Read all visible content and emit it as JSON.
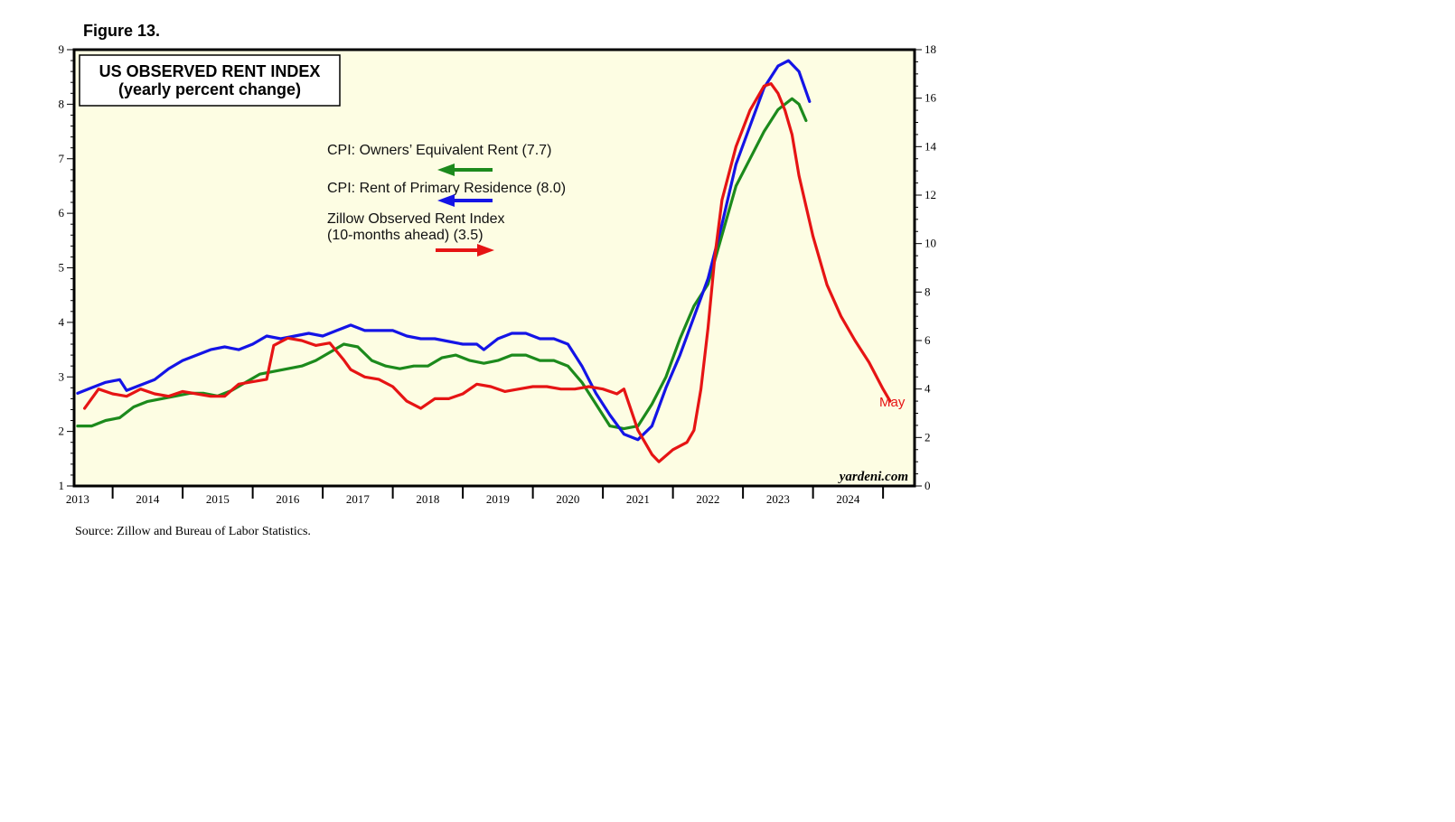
{
  "figure_label": "Figure 13.",
  "source": "Source: Zillow and Bureau of Labor Statistics.",
  "chart_data": {
    "type": "line",
    "title": "US OBSERVED RENT INDEX",
    "subtitle": "(yearly percent change)",
    "watermark": "yardeni.com",
    "end_label": "May",
    "x_range": [
      2012.95,
      2024.95
    ],
    "x_ticks": [
      "2013",
      "2014",
      "2015",
      "2016",
      "2017",
      "2018",
      "2019",
      "2020",
      "2021",
      "2022",
      "2023",
      "2024"
    ],
    "y_left": {
      "min": 1,
      "max": 9,
      "ticks": [
        "1",
        "2",
        "3",
        "4",
        "5",
        "6",
        "7",
        "8",
        "9"
      ]
    },
    "y_right": {
      "min": 0,
      "max": 18,
      "ticks": [
        "0",
        "2",
        "4",
        "6",
        "8",
        "10",
        "12",
        "14",
        "16",
        "18"
      ]
    },
    "plot_background": "#fdfde3",
    "series": [
      {
        "name": "CPI: Owners' Equivalent Rent (7.7)",
        "color": "#1c8a1c",
        "axis": "left",
        "arrow": "left",
        "points": [
          [
            2013.0,
            2.1
          ],
          [
            2013.2,
            2.1
          ],
          [
            2013.4,
            2.2
          ],
          [
            2013.6,
            2.25
          ],
          [
            2013.8,
            2.45
          ],
          [
            2014.0,
            2.55
          ],
          [
            2014.2,
            2.6
          ],
          [
            2014.4,
            2.65
          ],
          [
            2014.6,
            2.7
          ],
          [
            2014.8,
            2.7
          ],
          [
            2015.0,
            2.65
          ],
          [
            2015.2,
            2.75
          ],
          [
            2015.4,
            2.9
          ],
          [
            2015.6,
            3.05
          ],
          [
            2015.8,
            3.1
          ],
          [
            2016.0,
            3.15
          ],
          [
            2016.2,
            3.2
          ],
          [
            2016.4,
            3.3
          ],
          [
            2016.6,
            3.45
          ],
          [
            2016.8,
            3.6
          ],
          [
            2017.0,
            3.55
          ],
          [
            2017.2,
            3.3
          ],
          [
            2017.4,
            3.2
          ],
          [
            2017.6,
            3.15
          ],
          [
            2017.8,
            3.2
          ],
          [
            2018.0,
            3.2
          ],
          [
            2018.2,
            3.35
          ],
          [
            2018.4,
            3.4
          ],
          [
            2018.6,
            3.3
          ],
          [
            2018.8,
            3.25
          ],
          [
            2019.0,
            3.3
          ],
          [
            2019.2,
            3.4
          ],
          [
            2019.4,
            3.4
          ],
          [
            2019.6,
            3.3
          ],
          [
            2019.8,
            3.3
          ],
          [
            2020.0,
            3.2
          ],
          [
            2020.2,
            2.9
          ],
          [
            2020.4,
            2.5
          ],
          [
            2020.6,
            2.1
          ],
          [
            2020.8,
            2.05
          ],
          [
            2021.0,
            2.1
          ],
          [
            2021.2,
            2.5
          ],
          [
            2021.4,
            3.0
          ],
          [
            2021.6,
            3.7
          ],
          [
            2021.8,
            4.3
          ],
          [
            2022.0,
            4.7
          ],
          [
            2022.2,
            5.6
          ],
          [
            2022.4,
            6.5
          ],
          [
            2022.6,
            7.0
          ],
          [
            2022.8,
            7.5
          ],
          [
            2023.0,
            7.9
          ],
          [
            2023.2,
            8.1
          ],
          [
            2023.3,
            8.0
          ],
          [
            2023.4,
            7.7
          ]
        ]
      },
      {
        "name": "CPI: Rent of Primary Residence (8.0)",
        "color": "#1414e6",
        "axis": "left",
        "arrow": "left",
        "points": [
          [
            2013.0,
            2.7
          ],
          [
            2013.2,
            2.8
          ],
          [
            2013.4,
            2.9
          ],
          [
            2013.6,
            2.95
          ],
          [
            2013.7,
            2.75
          ],
          [
            2013.9,
            2.85
          ],
          [
            2014.1,
            2.95
          ],
          [
            2014.3,
            3.15
          ],
          [
            2014.5,
            3.3
          ],
          [
            2014.7,
            3.4
          ],
          [
            2014.9,
            3.5
          ],
          [
            2015.1,
            3.55
          ],
          [
            2015.3,
            3.5
          ],
          [
            2015.5,
            3.6
          ],
          [
            2015.7,
            3.75
          ],
          [
            2015.9,
            3.7
          ],
          [
            2016.1,
            3.75
          ],
          [
            2016.3,
            3.8
          ],
          [
            2016.5,
            3.75
          ],
          [
            2016.7,
            3.85
          ],
          [
            2016.9,
            3.95
          ],
          [
            2017.1,
            3.85
          ],
          [
            2017.3,
            3.85
          ],
          [
            2017.5,
            3.85
          ],
          [
            2017.7,
            3.75
          ],
          [
            2017.9,
            3.7
          ],
          [
            2018.1,
            3.7
          ],
          [
            2018.3,
            3.65
          ],
          [
            2018.5,
            3.6
          ],
          [
            2018.7,
            3.6
          ],
          [
            2018.8,
            3.5
          ],
          [
            2019.0,
            3.7
          ],
          [
            2019.2,
            3.8
          ],
          [
            2019.4,
            3.8
          ],
          [
            2019.6,
            3.7
          ],
          [
            2019.8,
            3.7
          ],
          [
            2020.0,
            3.6
          ],
          [
            2020.2,
            3.2
          ],
          [
            2020.4,
            2.7
          ],
          [
            2020.6,
            2.3
          ],
          [
            2020.8,
            1.95
          ],
          [
            2021.0,
            1.85
          ],
          [
            2021.2,
            2.1
          ],
          [
            2021.4,
            2.8
          ],
          [
            2021.6,
            3.4
          ],
          [
            2021.8,
            4.1
          ],
          [
            2022.0,
            4.8
          ],
          [
            2022.2,
            5.8
          ],
          [
            2022.4,
            6.9
          ],
          [
            2022.6,
            7.6
          ],
          [
            2022.8,
            8.3
          ],
          [
            2023.0,
            8.7
          ],
          [
            2023.15,
            8.8
          ],
          [
            2023.3,
            8.6
          ],
          [
            2023.45,
            8.05
          ]
        ]
      },
      {
        "name": "Zillow Observed Rent Index (10-months ahead) (3.5)",
        "color": "#e61414",
        "axis": "right",
        "arrow": "right",
        "points": [
          [
            2013.1,
            3.2
          ],
          [
            2013.3,
            4.0
          ],
          [
            2013.5,
            3.8
          ],
          [
            2013.7,
            3.7
          ],
          [
            2013.9,
            4.0
          ],
          [
            2014.1,
            3.8
          ],
          [
            2014.3,
            3.7
          ],
          [
            2014.5,
            3.9
          ],
          [
            2014.7,
            3.8
          ],
          [
            2014.9,
            3.7
          ],
          [
            2015.1,
            3.7
          ],
          [
            2015.3,
            4.2
          ],
          [
            2015.5,
            4.3
          ],
          [
            2015.7,
            4.4
          ],
          [
            2015.8,
            5.8
          ],
          [
            2016.0,
            6.1
          ],
          [
            2016.2,
            6.0
          ],
          [
            2016.4,
            5.8
          ],
          [
            2016.6,
            5.9
          ],
          [
            2016.8,
            5.2
          ],
          [
            2016.9,
            4.8
          ],
          [
            2017.1,
            4.5
          ],
          [
            2017.3,
            4.4
          ],
          [
            2017.5,
            4.1
          ],
          [
            2017.7,
            3.5
          ],
          [
            2017.9,
            3.2
          ],
          [
            2018.1,
            3.6
          ],
          [
            2018.3,
            3.6
          ],
          [
            2018.5,
            3.8
          ],
          [
            2018.7,
            4.2
          ],
          [
            2018.9,
            4.1
          ],
          [
            2019.1,
            3.9
          ],
          [
            2019.3,
            4.0
          ],
          [
            2019.5,
            4.1
          ],
          [
            2019.7,
            4.1
          ],
          [
            2019.9,
            4.0
          ],
          [
            2020.1,
            4.0
          ],
          [
            2020.3,
            4.1
          ],
          [
            2020.5,
            4.0
          ],
          [
            2020.7,
            3.8
          ],
          [
            2020.8,
            4.0
          ],
          [
            2021.0,
            2.3
          ],
          [
            2021.2,
            1.3
          ],
          [
            2021.3,
            1.0
          ],
          [
            2021.5,
            1.5
          ],
          [
            2021.7,
            1.8
          ],
          [
            2021.8,
            2.3
          ],
          [
            2021.9,
            4.0
          ],
          [
            2022.0,
            6.5
          ],
          [
            2022.1,
            9.5
          ],
          [
            2022.2,
            11.8
          ],
          [
            2022.4,
            14.0
          ],
          [
            2022.6,
            15.5
          ],
          [
            2022.8,
            16.5
          ],
          [
            2022.9,
            16.6
          ],
          [
            2023.0,
            16.2
          ],
          [
            2023.1,
            15.5
          ],
          [
            2023.2,
            14.5
          ],
          [
            2023.3,
            12.8
          ],
          [
            2023.5,
            10.3
          ],
          [
            2023.7,
            8.3
          ],
          [
            2023.9,
            7.0
          ],
          [
            2024.1,
            6.0
          ],
          [
            2024.3,
            5.1
          ],
          [
            2024.5,
            4.0
          ],
          [
            2024.6,
            3.5
          ]
        ]
      }
    ],
    "legend_entries": [
      {
        "text": "CPI: Owners’ Equivalent Rent (7.7)"
      },
      {
        "text": "CPI: Rent of Primary Residence (8.0)"
      },
      {
        "text_line1": "Zillow Observed Rent Index",
        "text_line2": "(10-months ahead) (3.5)"
      }
    ]
  }
}
